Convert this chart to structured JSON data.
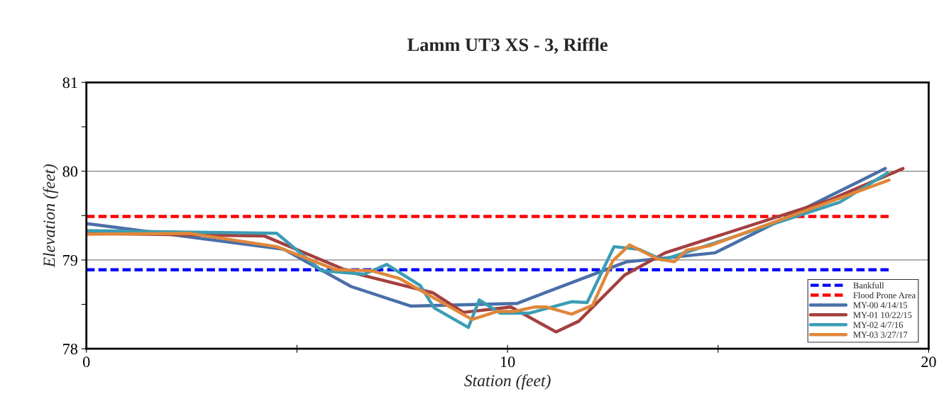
{
  "chart_data": {
    "type": "line",
    "title": "Lamm UT3 XS - 3, Riffle",
    "xlabel": "Station (feet)",
    "ylabel": "Elevation (feet)",
    "xlim": [
      0,
      20
    ],
    "xticks": [
      0,
      {
        "value": 5,
        "label": null
      },
      10,
      {
        "value": 15,
        "label": null
      },
      20
    ],
    "ylim": [
      78,
      81
    ],
    "yticks": [
      78,
      {
        "value": 78.5,
        "label": null
      },
      79,
      {
        "value": 79.5,
        "label": null
      },
      80,
      {
        "value": 80.5,
        "label": null
      },
      81
    ],
    "grid": "y",
    "legend": "right",
    "line_style": "solid",
    "marker": "none",
    "series": [
      {
        "name": "Bankfull",
        "color": "#0000ff",
        "line_style": "dashed",
        "x": [
          0,
          19.05
        ],
        "values": [
          78.89,
          78.89
        ]
      },
      {
        "name": "Flood Prone Area",
        "color": "#ff0000",
        "line_style": "dashed",
        "x": [
          0,
          19.05
        ],
        "values": [
          79.49,
          79.49
        ]
      },
      {
        "name": "MY-00 4/14/15",
        "color": "#4a6fa8",
        "x": [
          0,
          4.69,
          6.29,
          7.71,
          10.22,
          12.83,
          13.5,
          14.92,
          18.97
        ],
        "values": [
          79.41,
          79.12,
          78.7,
          78.48,
          78.51,
          78.98,
          79.01,
          79.08,
          80.03
        ]
      },
      {
        "name": "MY-01 10/22/15",
        "color": "#a4403f",
        "x": [
          0,
          4.23,
          6.29,
          8.23,
          8.95,
          10.08,
          11.15,
          11.69,
          12.78,
          13.74,
          17.62,
          19.39
        ],
        "values": [
          79.3,
          79.27,
          78.86,
          78.63,
          78.41,
          78.47,
          78.19,
          78.31,
          78.83,
          79.08,
          79.67,
          80.03
        ]
      },
      {
        "name": "MY-02 4/7/16",
        "color": "#3b9db4",
        "x": [
          0,
          4.52,
          5.58,
          6.59,
          7.13,
          7.93,
          8.26,
          9.07,
          9.33,
          9.83,
          10.51,
          11.52,
          11.89,
          12.53,
          13.12,
          13.68,
          17.89,
          19.02
        ],
        "values": [
          79.33,
          79.3,
          78.88,
          78.84,
          78.95,
          78.71,
          78.46,
          78.24,
          78.55,
          78.4,
          78.4,
          78.53,
          78.52,
          79.15,
          79.12,
          79.0,
          79.65,
          79.98
        ]
      },
      {
        "name": "MY-03 3/27/17",
        "color": "#e0873a",
        "x": [
          0,
          2.45,
          4.52,
          5.92,
          6.76,
          7.44,
          9.16,
          9.75,
          10.14,
          10.64,
          10.93,
          11.52,
          12.02,
          12.5,
          12.9,
          13.57,
          13.96,
          14.25,
          14.8,
          19.06
        ],
        "values": [
          79.29,
          79.3,
          79.15,
          78.89,
          78.88,
          78.79,
          78.33,
          78.42,
          78.42,
          78.47,
          78.47,
          78.39,
          78.49,
          78.99,
          79.17,
          79.01,
          78.98,
          79.11,
          79.16,
          79.9
        ]
      }
    ]
  }
}
